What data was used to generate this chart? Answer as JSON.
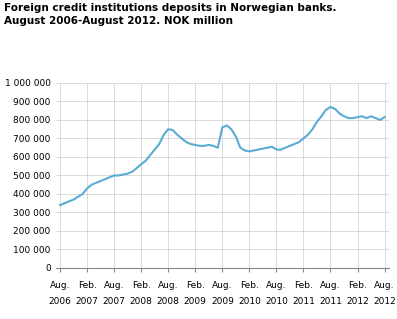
{
  "title_line1": "Foreign credit institutions deposits in Norwegian banks.",
  "title_line2": "August 2006-August 2012. NOK million",
  "line_color": "#5BACD4",
  "line_width": 1.5,
  "background_color": "#ffffff",
  "grid_color": "#cccccc",
  "ylim": [
    0,
    1000000
  ],
  "yticks": [
    0,
    100000,
    200000,
    300000,
    400000,
    500000,
    600000,
    700000,
    800000,
    900000,
    1000000
  ],
  "ytick_labels": [
    "0",
    "100 000",
    "200 000",
    "300 000",
    "400 000",
    "500 000",
    "600 000",
    "700 000",
    "800 000",
    "900 000",
    "1 000 000"
  ],
  "xtick_labels_row1": [
    "Aug.",
    "Feb.",
    "Aug.",
    "Feb.",
    "Aug.",
    "Feb.",
    "Aug.",
    "Feb.",
    "Aug.",
    "Feb.",
    "Aug.",
    "Feb.",
    "Aug."
  ],
  "xtick_labels_row2": [
    "2006",
    "2007",
    "2007",
    "2008",
    "2008",
    "2009",
    "2009",
    "2010",
    "2010",
    "2011",
    "2011",
    "2012",
    "2012"
  ],
  "months_data": [
    340000,
    350000,
    360000,
    370000,
    385000,
    400000,
    430000,
    450000,
    460000,
    470000,
    480000,
    490000,
    500000,
    500000,
    505000,
    510000,
    520000,
    540000,
    560000,
    580000,
    610000,
    640000,
    670000,
    720000,
    750000,
    745000,
    720000,
    700000,
    680000,
    670000,
    665000,
    660000,
    660000,
    665000,
    660000,
    650000,
    760000,
    770000,
    750000,
    710000,
    650000,
    635000,
    630000,
    635000,
    640000,
    645000,
    650000,
    655000,
    640000,
    640000,
    650000,
    660000,
    670000,
    680000,
    700000,
    720000,
    750000,
    790000,
    820000,
    855000,
    870000,
    860000,
    835000,
    820000,
    810000,
    810000,
    815000,
    820000,
    810000,
    820000,
    810000,
    800000,
    815000
  ]
}
